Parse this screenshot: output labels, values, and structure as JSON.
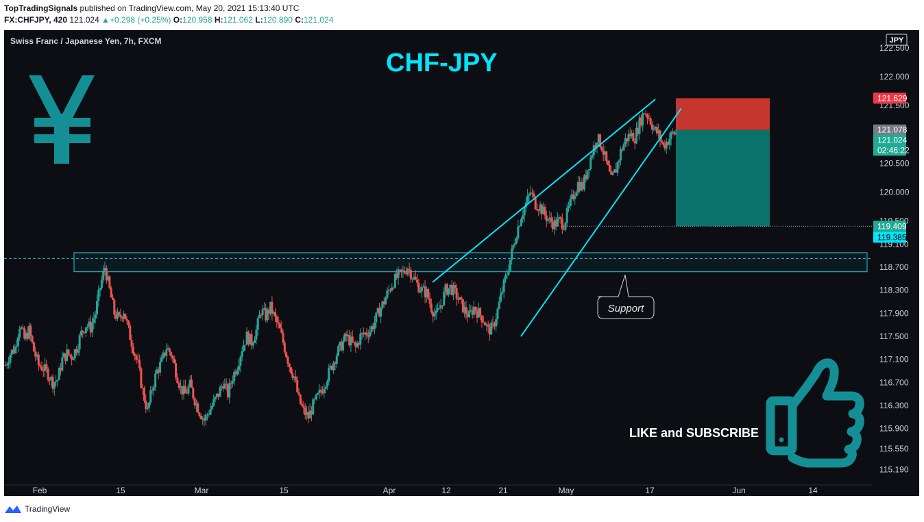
{
  "header": {
    "author": "TopTradingSignals",
    "published_text": "published on TradingView.com, May 20, 2021 15:13:40 UTC",
    "symbol": "FX:CHFJPY, 420",
    "last": "121.024",
    "change": "+0.298 (+0.25%)",
    "o_label": "O:",
    "o": "120.958",
    "h_label": "H:",
    "h": "121.062",
    "l_label": "L:",
    "l": "120.890",
    "c_label": "C:",
    "c": "121.024"
  },
  "chart_data": {
    "type": "candlestick",
    "title": "CHF-JPY",
    "instrument": "Swiss Franc / Japanese Yen, 7h, FXCM",
    "currency_badge": "JPY",
    "y_ticks": [
      "122.500",
      "122.000",
      "121.500",
      "120.500",
      "120.000",
      "119.500",
      "119.100",
      "118.700",
      "118.300",
      "117.900",
      "117.500",
      "117.100",
      "116.700",
      "116.300",
      "115.900",
      "115.550",
      "115.190"
    ],
    "x_ticks": [
      "Feb",
      "15",
      "Mar",
      "15",
      "Apr",
      "12",
      "21",
      "May",
      "17",
      "Jun",
      "14"
    ],
    "ylim": [
      115.19,
      122.6
    ],
    "price_labels": [
      {
        "value": "121.629",
        "kind": "stop-loss",
        "color": "#f23645"
      },
      {
        "value": "121.078",
        "kind": "entry",
        "color": "#787b86"
      },
      {
        "value": "121.024",
        "kind": "last",
        "color": "#22ab94"
      },
      {
        "value": "02:46:22",
        "kind": "countdown",
        "color": "#22ab94"
      },
      {
        "value": "119.409",
        "kind": "target",
        "color": "#22ab94"
      },
      {
        "value": "119.385",
        "kind": "line",
        "color": "#00e5ff"
      }
    ],
    "ohlc_path": [
      117.0,
      117.2,
      117.3,
      117.7,
      117.45,
      117.6,
      117.25,
      117.0,
      116.95,
      116.85,
      116.7,
      116.75,
      117.1,
      117.2,
      117.15,
      117.3,
      117.55,
      117.7,
      117.65,
      117.9,
      118.35,
      118.7,
      118.3,
      117.9,
      117.8,
      117.95,
      117.6,
      117.3,
      117.0,
      116.55,
      116.2,
      116.6,
      116.9,
      117.05,
      117.3,
      117.2,
      116.9,
      116.6,
      116.5,
      116.65,
      116.4,
      116.2,
      116.05,
      116.2,
      116.35,
      116.5,
      116.7,
      116.5,
      116.8,
      117.0,
      117.3,
      117.5,
      117.4,
      117.6,
      117.95,
      117.85,
      118.0,
      117.8,
      117.6,
      117.3,
      117.0,
      116.8,
      116.4,
      116.2,
      116.1,
      116.3,
      116.45,
      116.6,
      116.8,
      117.0,
      117.2,
      117.35,
      117.5,
      117.4,
      117.3,
      117.5,
      117.55,
      117.6,
      117.75,
      117.95,
      118.1,
      118.3,
      118.45,
      118.55,
      118.6,
      118.7,
      118.55,
      118.4,
      118.3,
      118.25,
      118.0,
      117.85,
      118.05,
      118.3,
      118.35,
      118.25,
      118.1,
      117.95,
      117.85,
      118.0,
      117.9,
      117.8,
      117.6,
      117.65,
      117.95,
      118.3,
      118.6,
      118.95,
      119.3,
      119.6,
      119.8,
      120.0,
      119.8,
      119.75,
      119.6,
      119.5,
      119.45,
      119.5,
      119.45,
      119.7,
      119.95,
      120.15,
      120.1,
      120.4,
      120.7,
      120.95,
      120.8,
      120.5,
      120.2,
      120.4,
      120.7,
      120.9,
      121.0,
      120.95,
      121.2,
      121.4,
      121.3,
      121.1,
      121.0,
      120.8,
      120.9,
      121.02
    ],
    "levels": [
      {
        "name": "resistance zone (dashed line)",
        "value": 118.85
      },
      {
        "name": "support zone top",
        "value": 118.95
      },
      {
        "name": "support zone bottom",
        "value": 118.62
      },
      {
        "name": "target line",
        "value": 119.409
      }
    ],
    "annotations": {
      "support_label": "Support",
      "cta_text": "LIKE and SUBSCRIBE"
    },
    "position": {
      "stop": 121.629,
      "entry": 121.078,
      "target": 119.409
    }
  },
  "footer": {
    "brand": "TradingView"
  },
  "colors": {
    "bg": "#0d0e13",
    "up": "#26a69a",
    "down": "#ef5350",
    "accent": "#00e5ff",
    "teal_icon": "#148f96",
    "stop_red": "#c5372e",
    "target_teal": "#0a716b"
  }
}
